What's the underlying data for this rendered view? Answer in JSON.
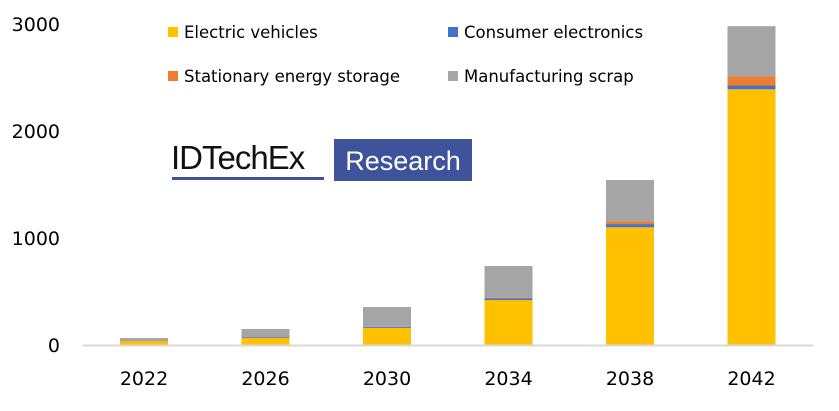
{
  "chart_data": {
    "type": "bar",
    "stacked": true,
    "title": "",
    "xlabel": "",
    "ylabel": "",
    "categories": [
      "2022",
      "2026",
      "2030",
      "2034",
      "2038",
      "2042"
    ],
    "ylim": [
      0,
      3000
    ],
    "yticks": [
      0,
      1000,
      2000,
      3000
    ],
    "grid": false,
    "legend": {
      "placement": "top",
      "columns": 2
    },
    "series": [
      {
        "name": "Electric vehicles",
        "color": "#ffc000",
        "values": [
          37,
          65,
          160,
          420,
          1100,
          2390
        ]
      },
      {
        "name": "Consumer electronics",
        "color": "#4472c4",
        "values": [
          3,
          5,
          10,
          15,
          30,
          35
        ]
      },
      {
        "name": "Stationary energy storage",
        "color": "#ed7d31",
        "values": [
          0,
          0,
          2,
          5,
          25,
          85
        ]
      },
      {
        "name": "Manufacturing scrap",
        "color": "#a5a5a5",
        "values": [
          25,
          80,
          183,
          298,
          387,
          470
        ]
      }
    ],
    "legend_order": [
      0,
      1,
      2,
      3
    ]
  },
  "watermark": {
    "brand": "IDTechEx",
    "badge": "Research",
    "color": "#3e539b"
  }
}
